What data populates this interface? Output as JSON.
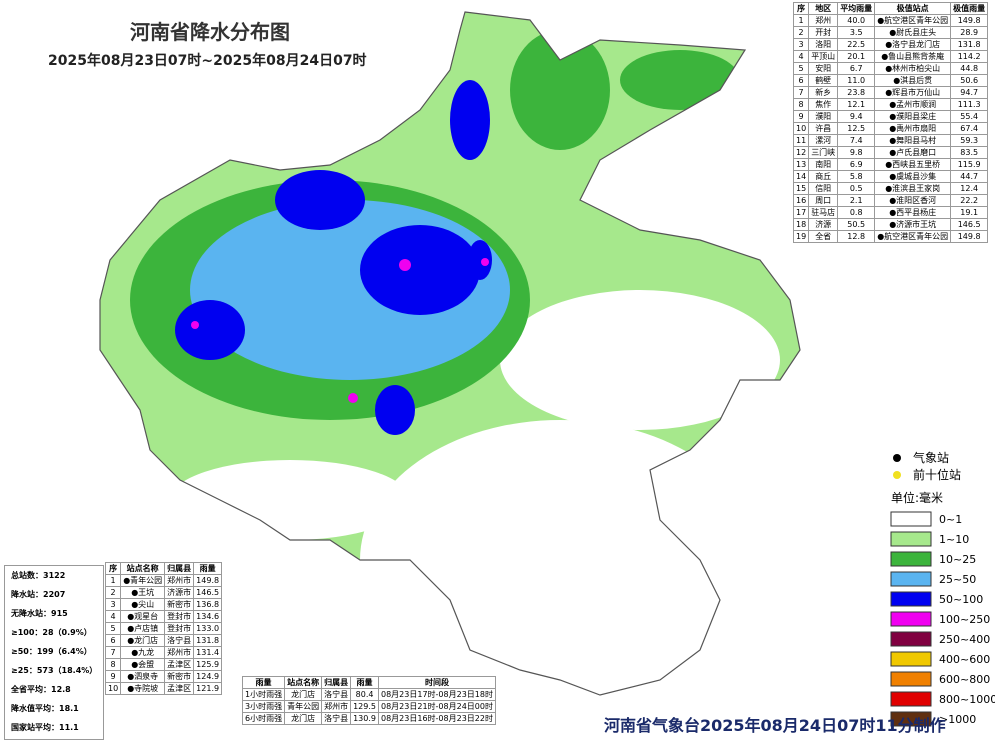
{
  "title": "河南省降水分布图",
  "subtitle": "2025年08月23日07时~2025年08月24日07时",
  "region_table": {
    "headers": [
      "序",
      "地区",
      "平均雨量",
      "极值站点",
      "极值雨量"
    ],
    "rows": [
      [
        "1",
        "郑州",
        "40.0",
        "●航空港区青年公园",
        "149.8"
      ],
      [
        "2",
        "开封",
        "3.5",
        "●尉氏县庄头",
        "28.9"
      ],
      [
        "3",
        "洛阳",
        "22.5",
        "●洛宁县龙门店",
        "131.8"
      ],
      [
        "4",
        "平顶山",
        "20.1",
        "●鲁山县熊背茶庵",
        "114.2"
      ],
      [
        "5",
        "安阳",
        "6.7",
        "●林州市柏尖山",
        "44.8"
      ],
      [
        "6",
        "鹤壁",
        "11.0",
        "●淇县后贯",
        "50.6"
      ],
      [
        "7",
        "新乡",
        "23.8",
        "●辉县市万仙山",
        "94.7"
      ],
      [
        "8",
        "焦作",
        "12.1",
        "●孟州市顺涧",
        "111.3"
      ],
      [
        "9",
        "濮阳",
        "9.4",
        "●濮阳县梁庄",
        "55.4"
      ],
      [
        "10",
        "许昌",
        "12.5",
        "●禹州市扇阳",
        "67.4"
      ],
      [
        "11",
        "漯河",
        "7.4",
        "●舞阳县马村",
        "59.3"
      ],
      [
        "12",
        "三门峡",
        "9.8",
        "●卢氏县磨口",
        "83.5"
      ],
      [
        "13",
        "南阳",
        "6.9",
        "●西峡县五里桥",
        "115.9"
      ],
      [
        "14",
        "商丘",
        "5.8",
        "●虞城县沙集",
        "44.7"
      ],
      [
        "15",
        "信阳",
        "0.5",
        "●淮滨县王家岗",
        "12.4"
      ],
      [
        "16",
        "周口",
        "2.1",
        "●淮阳区香河",
        "22.2"
      ],
      [
        "17",
        "驻马店",
        "0.8",
        "●西平县杨庄",
        "19.1"
      ],
      [
        "18",
        "济源",
        "50.5",
        "●济源市王坑",
        "146.5"
      ],
      [
        "19",
        "全省",
        "12.8",
        "●航空港区青年公园",
        "149.8"
      ]
    ]
  },
  "stats": [
    "总站数：3122",
    "降水站：2207",
    "无降水站：915",
    "≥100：28（0.9%）",
    "≥50：199（6.4%）",
    "≥25：573（18.4%）",
    "全省平均：12.8",
    "降水值平均：18.1",
    "国家站平均：11.1"
  ],
  "top_stations": {
    "headers": [
      "序",
      "站点名称",
      "归属县",
      "雨量"
    ],
    "rows": [
      [
        "1",
        "●青年公园",
        "郑州市",
        "149.8"
      ],
      [
        "2",
        "●王坑",
        "济源市",
        "146.5"
      ],
      [
        "3",
        "●尖山",
        "新密市",
        "136.8"
      ],
      [
        "4",
        "●观星台",
        "登封市",
        "134.6"
      ],
      [
        "5",
        "●卢店镇",
        "登封市",
        "133.0"
      ],
      [
        "6",
        "●龙门店",
        "洛宁县",
        "131.8"
      ],
      [
        "7",
        "●九龙",
        "郑州市",
        "131.4"
      ],
      [
        "8",
        "●会盟",
        "孟津区",
        "125.9"
      ],
      [
        "9",
        "●泗泉寺",
        "新密市",
        "124.9"
      ],
      [
        "10",
        "●寺院坡",
        "孟津区",
        "121.9"
      ]
    ]
  },
  "intensity": {
    "headers": [
      "雨量",
      "站点名称",
      "归属县",
      "雨量",
      "时间段"
    ],
    "rows": [
      [
        "1小时雨强",
        "龙门店",
        "洛宁县",
        "80.4",
        "08月23日17时-08月23日18时"
      ],
      [
        "3小时雨强",
        "青年公园",
        "郑州市",
        "129.5",
        "08月23日21时-08月24日00时"
      ],
      [
        "6小时雨强",
        "龙门店",
        "洛宁县",
        "130.9",
        "08月23日16时-08月23日22时"
      ]
    ]
  },
  "legend": {
    "stations": [
      {
        "label": "气象站",
        "color": "#000000"
      },
      {
        "label": "前十位站",
        "color": "#f0e020"
      }
    ],
    "unit": "单位:毫米",
    "classes": [
      {
        "label": "0~1",
        "color": "#ffffff"
      },
      {
        "label": "1~10",
        "color": "#a6e88c"
      },
      {
        "label": "10~25",
        "color": "#3cb43c"
      },
      {
        "label": "25~50",
        "color": "#5ab4f0"
      },
      {
        "label": "50~100",
        "color": "#0000f0"
      },
      {
        "label": "100~250",
        "color": "#f000f0"
      },
      {
        "label": "250~400",
        "color": "#800040"
      },
      {
        "label": "400~600",
        "color": "#f0c800"
      },
      {
        "label": "600~800",
        "color": "#f08000"
      },
      {
        "label": "800~1000",
        "color": "#e00000"
      },
      {
        "label": ">1000",
        "color": "#603010"
      }
    ]
  },
  "footer": "河南省气象台2025年08月24日07时11分制作"
}
